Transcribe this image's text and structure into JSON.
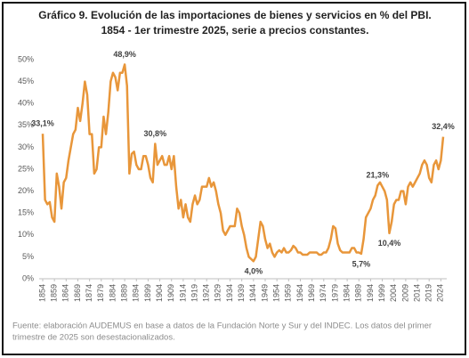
{
  "chart_data": {
    "type": "line",
    "title": "Gráfico 9. Evolución de las importaciones de bienes y servicios en % del PBI.",
    "subtitle": "1854 - 1er trimestre 2025, serie a precios constantes.",
    "note": [
      "Fuente: elaboración AUDEMUS en base a datos de la Fundación Norte y Sur y del INDEC. Los datos del primer",
      "trimestre de 2025 son desestacionalizados."
    ],
    "x": [
      1854,
      1855,
      1856,
      1857,
      1858,
      1859,
      1860,
      1861,
      1862,
      1863,
      1864,
      1865,
      1866,
      1867,
      1868,
      1869,
      1870,
      1871,
      1872,
      1873,
      1874,
      1875,
      1876,
      1877,
      1878,
      1879,
      1880,
      1881,
      1882,
      1883,
      1884,
      1885,
      1886,
      1887,
      1888,
      1889,
      1890,
      1891,
      1892,
      1893,
      1894,
      1895,
      1896,
      1897,
      1898,
      1899,
      1900,
      1901,
      1902,
      1903,
      1904,
      1905,
      1906,
      1907,
      1908,
      1909,
      1910,
      1911,
      1912,
      1913,
      1914,
      1915,
      1916,
      1917,
      1918,
      1919,
      1920,
      1921,
      1922,
      1923,
      1924,
      1925,
      1926,
      1927,
      1928,
      1929,
      1930,
      1931,
      1932,
      1933,
      1934,
      1935,
      1936,
      1937,
      1938,
      1939,
      1940,
      1941,
      1942,
      1943,
      1944,
      1945,
      1946,
      1947,
      1948,
      1949,
      1950,
      1951,
      1952,
      1953,
      1954,
      1955,
      1956,
      1957,
      1958,
      1959,
      1960,
      1961,
      1962,
      1963,
      1964,
      1965,
      1966,
      1967,
      1968,
      1969,
      1970,
      1971,
      1972,
      1973,
      1974,
      1975,
      1976,
      1977,
      1978,
      1979,
      1980,
      1981,
      1982,
      1983,
      1984,
      1985,
      1986,
      1987,
      1988,
      1989,
      1990,
      1991,
      1992,
      1993,
      1994,
      1995,
      1996,
      1997,
      1998,
      1999,
      2000,
      2001,
      2002,
      2003,
      2004,
      2005,
      2006,
      2007,
      2008,
      2009,
      2010,
      2011,
      2012,
      2013,
      2014,
      2015,
      2016,
      2017,
      2018,
      2019,
      2020,
      2021,
      2022,
      2023,
      2024,
      2025
    ],
    "series": [
      {
        "color": "#e8963a",
        "values": [
          33.1,
          18,
          17,
          17.5,
          14,
          13,
          24,
          21,
          16,
          22,
          23,
          27,
          30,
          33,
          34,
          39,
          36,
          40,
          45,
          42,
          33,
          33,
          24,
          25,
          30,
          30,
          37,
          33,
          38,
          45,
          47,
          46,
          43,
          47,
          47,
          48.9,
          44,
          24,
          28.5,
          29,
          26,
          25,
          25,
          28,
          28,
          26,
          23,
          22,
          30.8,
          26,
          27,
          28,
          26,
          26,
          28,
          25,
          28,
          21,
          16,
          18,
          14,
          17,
          14,
          13,
          17,
          19,
          17,
          18,
          21,
          21,
          21,
          23,
          21,
          22,
          20,
          17,
          15,
          11,
          10,
          11,
          12,
          12,
          12,
          16,
          15,
          12,
          10,
          7,
          5,
          4.5,
          4.0,
          5,
          9,
          13,
          12,
          9,
          7,
          8,
          6,
          5,
          6,
          6.5,
          6,
          7,
          6,
          6,
          6.5,
          7.5,
          7,
          6,
          6,
          5.5,
          5.5,
          5.5,
          6,
          6,
          6,
          6,
          5.5,
          5.5,
          6,
          6,
          7,
          9,
          12,
          11.5,
          8,
          6.5,
          6,
          6,
          6,
          6,
          7,
          7,
          6,
          6,
          5.7,
          9,
          14,
          15,
          16,
          18,
          19,
          21.3,
          22,
          21,
          20,
          18,
          10.4,
          13,
          17,
          18,
          18,
          20,
          20,
          17,
          21,
          22,
          21,
          22,
          23,
          24,
          26,
          27,
          26,
          23,
          22,
          26,
          27,
          25,
          27,
          32.4
        ]
      }
    ],
    "annotations": [
      {
        "x": 1854,
        "label": "33,1%"
      },
      {
        "x": 1889,
        "label": "48,9%"
      },
      {
        "x": 1902,
        "label": "30,8%"
      },
      {
        "x": 1944,
        "label": "4,0%"
      },
      {
        "x": 1990,
        "label": "5,7%"
      },
      {
        "x": 1997,
        "label": "21,3%"
      },
      {
        "x": 2002,
        "label": "10,4%"
      },
      {
        "x": 2025,
        "label": "32,4%"
      }
    ],
    "xlim": [
      1854,
      2025
    ],
    "xticks": [
      1854,
      1859,
      1864,
      1869,
      1874,
      1879,
      1884,
      1889,
      1894,
      1899,
      1904,
      1909,
      1914,
      1919,
      1924,
      1929,
      1934,
      1939,
      1944,
      1949,
      1954,
      1959,
      1964,
      1969,
      1974,
      1979,
      1984,
      1989,
      1994,
      1999,
      2004,
      2009,
      2014,
      2019,
      2024
    ],
    "ylim": [
      0,
      50
    ],
    "yticks": [
      {
        "value": 0,
        "label": "0%"
      },
      {
        "value": 5,
        "label": "5%"
      },
      {
        "value": 10,
        "label": "10%"
      },
      {
        "value": 15,
        "label": "15%"
      },
      {
        "value": 20,
        "label": "20%"
      },
      {
        "value": 25,
        "label": "25%"
      },
      {
        "value": 30,
        "label": "30%"
      },
      {
        "value": 35,
        "label": "35%"
      },
      {
        "value": 40,
        "label": "40%"
      },
      {
        "value": 45,
        "label": "45%"
      },
      {
        "value": 50,
        "label": "50%"
      }
    ],
    "grid": false
  }
}
